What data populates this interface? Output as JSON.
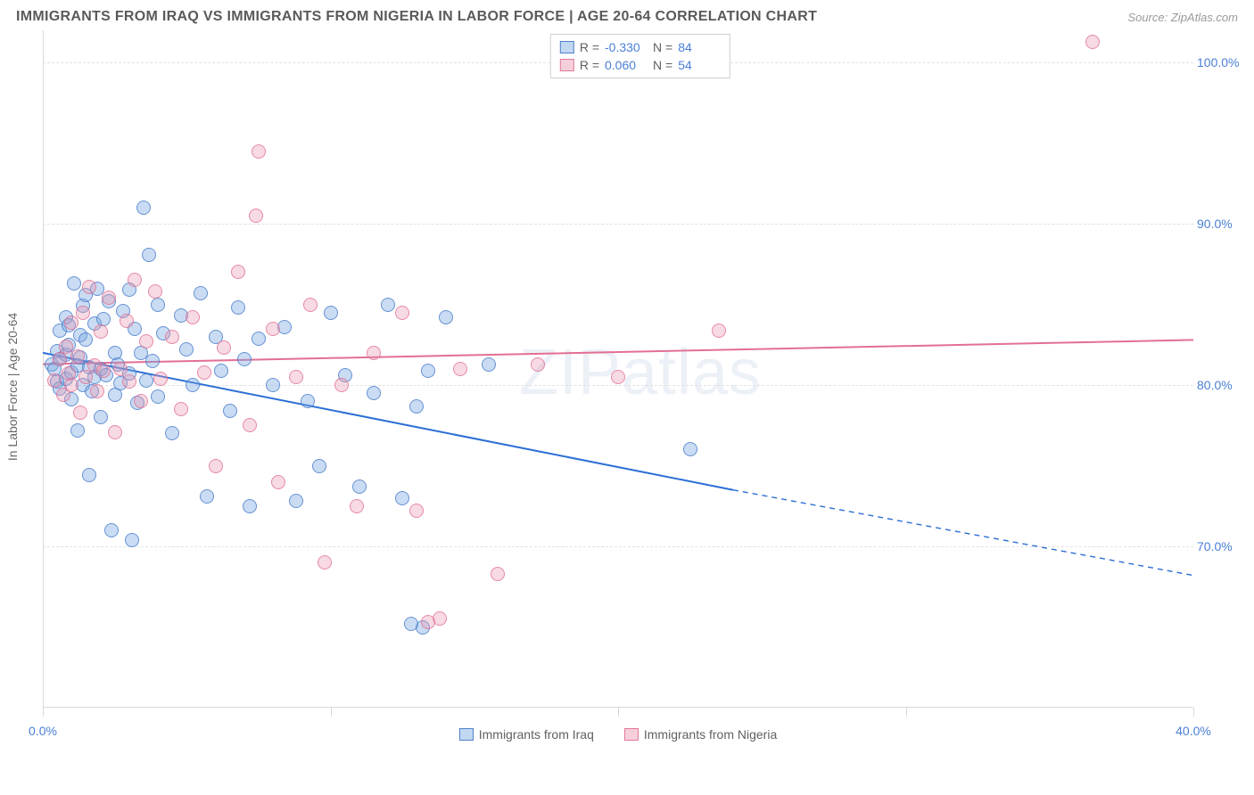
{
  "header": {
    "title": "IMMIGRANTS FROM IRAQ VS IMMIGRANTS FROM NIGERIA IN LABOR FORCE | AGE 20-64 CORRELATION CHART",
    "source_prefix": "Source: ",
    "source_name": "ZipAtlas.com"
  },
  "watermark": "ZIPatlas",
  "chart": {
    "type": "scatter",
    "y_axis_label": "In Labor Force | Age 20-64",
    "xlim": [
      0,
      40
    ],
    "ylim": [
      60,
      102
    ],
    "x_ticks": [
      0,
      10,
      20,
      30,
      40
    ],
    "x_tick_labels": [
      "0.0%",
      "",
      "",
      "",
      "40.0%"
    ],
    "y_ticks": [
      70,
      80,
      90,
      100
    ],
    "y_tick_labels": [
      "70.0%",
      "80.0%",
      "90.0%",
      "100.0%"
    ],
    "background_color": "#ffffff",
    "grid_color": "#e2e2e2",
    "axis_color": "#d8d8d8",
    "tick_label_color": "#4a7fd6",
    "watermark_color": "rgba(120,150,200,0.14)",
    "series": [
      {
        "name": "Immigrants from Iraq",
        "color_fill": "rgba(120,168,224,0.40)",
        "color_stroke": "rgba(70,120,200,0.75)",
        "marker_size": 16,
        "r": "-0.330",
        "n": "84",
        "trend": {
          "x1": 0,
          "y1": 82.0,
          "x2": 24,
          "y2": 73.5,
          "dash_from_x": 24,
          "dash_to_x": 40,
          "dash_to_y": 68.2,
          "stroke": "#2b6fd6",
          "width": 2
        },
        "points": [
          [
            0.3,
            81.3
          ],
          [
            0.4,
            81.0
          ],
          [
            0.5,
            82.1
          ],
          [
            0.5,
            80.2
          ],
          [
            0.6,
            83.4
          ],
          [
            0.6,
            81.6
          ],
          [
            0.6,
            79.8
          ],
          [
            0.8,
            81.9
          ],
          [
            0.8,
            84.2
          ],
          [
            0.8,
            80.4
          ],
          [
            0.9,
            82.5
          ],
          [
            0.9,
            83.7
          ],
          [
            1.0,
            79.1
          ],
          [
            1.0,
            80.8
          ],
          [
            1.1,
            86.3
          ],
          [
            1.2,
            81.2
          ],
          [
            1.2,
            77.2
          ],
          [
            1.3,
            83.1
          ],
          [
            1.3,
            81.7
          ],
          [
            1.4,
            84.9
          ],
          [
            1.4,
            80.0
          ],
          [
            1.5,
            82.8
          ],
          [
            1.5,
            85.6
          ],
          [
            1.6,
            74.4
          ],
          [
            1.6,
            81.1
          ],
          [
            1.7,
            79.6
          ],
          [
            1.8,
            83.8
          ],
          [
            1.8,
            80.5
          ],
          [
            1.9,
            86.0
          ],
          [
            2.0,
            81.0
          ],
          [
            2.0,
            78.0
          ],
          [
            2.1,
            84.1
          ],
          [
            2.2,
            80.6
          ],
          [
            2.3,
            85.2
          ],
          [
            2.4,
            71.0
          ],
          [
            2.5,
            79.4
          ],
          [
            2.5,
            82.0
          ],
          [
            2.6,
            81.3
          ],
          [
            2.7,
            80.1
          ],
          [
            2.8,
            84.6
          ],
          [
            3.0,
            85.9
          ],
          [
            3.0,
            80.7
          ],
          [
            3.1,
            70.4
          ],
          [
            3.2,
            83.5
          ],
          [
            3.3,
            78.9
          ],
          [
            3.4,
            82.0
          ],
          [
            3.5,
            91.0
          ],
          [
            3.6,
            80.3
          ],
          [
            3.7,
            88.1
          ],
          [
            3.8,
            81.5
          ],
          [
            4.0,
            85.0
          ],
          [
            4.0,
            79.3
          ],
          [
            4.2,
            83.2
          ],
          [
            4.5,
            77.0
          ],
          [
            4.8,
            84.3
          ],
          [
            5.0,
            82.2
          ],
          [
            5.2,
            80.0
          ],
          [
            5.5,
            85.7
          ],
          [
            5.7,
            73.1
          ],
          [
            6.0,
            83.0
          ],
          [
            6.2,
            80.9
          ],
          [
            6.5,
            78.4
          ],
          [
            6.8,
            84.8
          ],
          [
            7.0,
            81.6
          ],
          [
            7.2,
            72.5
          ],
          [
            7.5,
            82.9
          ],
          [
            8.0,
            80.0
          ],
          [
            8.4,
            83.6
          ],
          [
            8.8,
            72.8
          ],
          [
            9.2,
            79.0
          ],
          [
            9.6,
            75.0
          ],
          [
            10.0,
            84.5
          ],
          [
            10.5,
            80.6
          ],
          [
            11.0,
            73.7
          ],
          [
            11.5,
            79.5
          ],
          [
            12.0,
            85.0
          ],
          [
            12.5,
            73.0
          ],
          [
            13.0,
            78.7
          ],
          [
            13.2,
            65.0
          ],
          [
            13.4,
            80.9
          ],
          [
            14.0,
            84.2
          ],
          [
            15.5,
            81.3
          ],
          [
            22.5,
            76.0
          ],
          [
            12.8,
            65.2
          ]
        ]
      },
      {
        "name": "Immigrants from Nigeria",
        "color_fill": "rgba(232,150,175,0.35)",
        "color_stroke": "rgba(225,110,145,0.75)",
        "marker_size": 16,
        "r": "0.060",
        "n": "54",
        "trend": {
          "x1": 0,
          "y1": 81.3,
          "x2": 40,
          "y2": 82.8,
          "stroke": "#e36f94",
          "width": 2
        },
        "points": [
          [
            0.4,
            80.3
          ],
          [
            0.6,
            81.6
          ],
          [
            0.7,
            79.4
          ],
          [
            0.8,
            82.4
          ],
          [
            0.9,
            80.7
          ],
          [
            1.0,
            83.9
          ],
          [
            1.0,
            80.0
          ],
          [
            1.2,
            81.8
          ],
          [
            1.3,
            78.3
          ],
          [
            1.4,
            84.5
          ],
          [
            1.5,
            80.5
          ],
          [
            1.6,
            86.1
          ],
          [
            1.8,
            81.2
          ],
          [
            1.9,
            79.6
          ],
          [
            2.0,
            83.3
          ],
          [
            2.1,
            80.9
          ],
          [
            2.3,
            85.4
          ],
          [
            2.5,
            77.1
          ],
          [
            2.7,
            81.0
          ],
          [
            2.9,
            84.0
          ],
          [
            3.0,
            80.2
          ],
          [
            3.2,
            86.5
          ],
          [
            3.4,
            79.0
          ],
          [
            3.6,
            82.7
          ],
          [
            3.9,
            85.8
          ],
          [
            4.1,
            80.4
          ],
          [
            4.5,
            83.0
          ],
          [
            4.8,
            78.5
          ],
          [
            5.2,
            84.2
          ],
          [
            5.6,
            80.8
          ],
          [
            6.0,
            75.0
          ],
          [
            6.3,
            82.3
          ],
          [
            6.8,
            87.0
          ],
          [
            7.2,
            77.5
          ],
          [
            7.5,
            94.5
          ],
          [
            7.4,
            90.5
          ],
          [
            8.0,
            83.5
          ],
          [
            8.2,
            74.0
          ],
          [
            8.8,
            80.5
          ],
          [
            9.3,
            85.0
          ],
          [
            9.8,
            69.0
          ],
          [
            10.4,
            80.0
          ],
          [
            10.9,
            72.5
          ],
          [
            11.5,
            82.0
          ],
          [
            12.5,
            84.5
          ],
          [
            13.0,
            72.2
          ],
          [
            13.8,
            65.5
          ],
          [
            14.5,
            81.0
          ],
          [
            15.8,
            68.3
          ],
          [
            17.2,
            81.3
          ],
          [
            20.0,
            80.5
          ],
          [
            23.5,
            83.4
          ],
          [
            36.5,
            101.3
          ],
          [
            13.4,
            65.3
          ]
        ]
      }
    ],
    "legend_top_labels": {
      "r": "R =",
      "n": "N ="
    },
    "legend_bottom": [
      {
        "label": "Immigrants from Iraq",
        "swatch": "blue"
      },
      {
        "label": "Immigrants from Nigeria",
        "swatch": "pink"
      }
    ]
  }
}
